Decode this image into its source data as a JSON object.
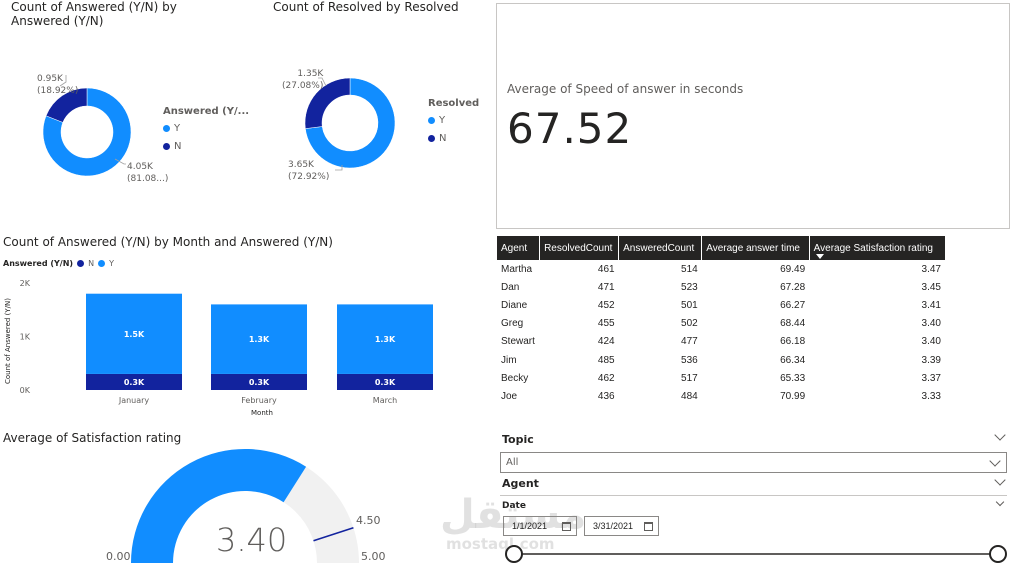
{
  "donut_answered": {
    "title_line1": "Count of Answered (Y/N) by",
    "title_line2": "Answered (Y/N)",
    "legend_title": "Answered (Y/...",
    "chart_data": {
      "type": "pie",
      "categories": [
        "Y",
        "N"
      ],
      "values": [
        4.05,
        0.95
      ],
      "unit": "K",
      "percent": [
        81.08,
        18.92
      ]
    },
    "label_y_value": "4.05K",
    "label_y_pct": "(81.08...)",
    "label_n_value": "0.95K",
    "label_n_pct": "(18.92%)",
    "legend": [
      {
        "label": "Y",
        "color": "#118DFF"
      },
      {
        "label": "N",
        "color": "#12239E"
      }
    ]
  },
  "donut_resolved": {
    "title": "Count of Resolved by Resolved",
    "legend_title": "Resolved",
    "chart_data": {
      "type": "pie",
      "categories": [
        "Y",
        "N"
      ],
      "values": [
        3.65,
        1.35
      ],
      "unit": "K",
      "percent": [
        72.92,
        27.08
      ]
    },
    "label_y_value": "3.65K",
    "label_y_pct": "(72.92%)",
    "label_n_value": "1.35K",
    "label_n_pct": "(27.08%)",
    "legend": [
      {
        "label": "Y",
        "color": "#118DFF"
      },
      {
        "label": "N",
        "color": "#12239E"
      }
    ]
  },
  "kpi": {
    "label": "Average of Speed of answer in seconds",
    "value": "67.52"
  },
  "bar_chart": {
    "title": "Count of Answered (Y/N) by Month and Answered (Y/N)",
    "legend_title": "Answered (Y/N)",
    "legend": [
      {
        "label": "N",
        "color": "#12239E"
      },
      {
        "label": "Y",
        "color": "#118DFF"
      }
    ],
    "xlabel": "Month",
    "ylabel": "Count of Answered (Y/N)",
    "yticks": [
      "0K",
      "1K",
      "2K"
    ],
    "chart_data": {
      "type": "bar",
      "stacked": true,
      "categories": [
        "January",
        "February",
        "March"
      ],
      "series": [
        {
          "name": "N",
          "values": [
            0.3,
            0.3,
            0.3
          ],
          "labels": [
            "0.3K",
            "0.3K",
            "0.3K"
          ]
        },
        {
          "name": "Y",
          "values": [
            1.5,
            1.3,
            1.3
          ],
          "labels": [
            "1.5K",
            "1.3K",
            "1.3K"
          ]
        }
      ],
      "ylim": [
        0,
        2
      ],
      "unit": "K"
    }
  },
  "table": {
    "columns": [
      "Agent",
      "ResolvedCount",
      "AnsweredCount",
      "Average answer time",
      "Average Satisfaction rating"
    ],
    "rows": [
      [
        "Martha",
        "461",
        "514",
        "69.49",
        "3.47"
      ],
      [
        "Dan",
        "471",
        "523",
        "67.28",
        "3.45"
      ],
      [
        "Diane",
        "452",
        "501",
        "66.27",
        "3.41"
      ],
      [
        "Greg",
        "455",
        "502",
        "68.44",
        "3.40"
      ],
      [
        "Stewart",
        "424",
        "477",
        "66.18",
        "3.40"
      ],
      [
        "Jim",
        "485",
        "536",
        "66.34",
        "3.39"
      ],
      [
        "Becky",
        "462",
        "517",
        "65.33",
        "3.37"
      ],
      [
        "Joe",
        "436",
        "484",
        "70.99",
        "3.33"
      ]
    ]
  },
  "gauge": {
    "title": "Average of Satisfaction rating",
    "value": "3.40",
    "min": "0.00",
    "max": "5.00",
    "target": "4.50",
    "chart_data": {
      "type": "gauge",
      "value": 3.4,
      "min": 0,
      "max": 5,
      "target": 4.5
    }
  },
  "slicers": {
    "topic_label": "Topic",
    "topic_value": "All",
    "agent_label": "Agent",
    "date_label": "Date",
    "date_start": "1/1/2021",
    "date_end": "3/31/2021"
  },
  "watermark": {
    "arabic": "مستقل",
    "latin": "mostaql.com"
  },
  "colors": {
    "primary": "#118DFF",
    "secondary": "#12239E",
    "gauge_bg": "#F1F1F1",
    "header": "#252423"
  }
}
